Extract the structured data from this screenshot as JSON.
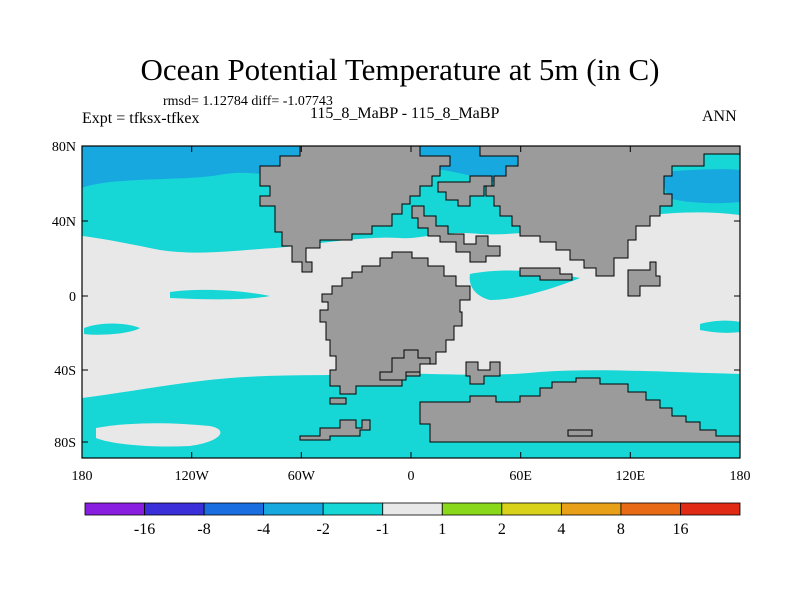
{
  "title": "Ocean Potential Temperature at 5m (in C)",
  "stats": "rmsd= 1.12784 diff= -1.07743",
  "experiment": "Expt = tfksx-tfkex",
  "case_label": "115_8_MaBP - 115_8_MaBP",
  "season": "ANN",
  "x_ticks": [
    "180",
    "120W",
    "60W",
    "0",
    "60E",
    "120E",
    "180"
  ],
  "y_ticks": [
    "80N",
    "40N",
    "0",
    "40S",
    "80S"
  ],
  "colorbar": {
    "labels": [
      "-16",
      "-8",
      "-4",
      "-2",
      "-1",
      "1",
      "2",
      "4",
      "8",
      "16"
    ],
    "colors": [
      "#8a1ee0",
      "#3a2fd8",
      "#1a6ee0",
      "#18a8e0",
      "#17d6d6",
      "#e8e8e8",
      "#8ad81a",
      "#d8d21a",
      "#e8a018",
      "#e86a14",
      "#e02a14"
    ]
  },
  "colors": {
    "land": "#9b9b9b",
    "ocean_neutral": "#e8e8e8",
    "cyan": "#17d6d6",
    "blue": "#18a8e0"
  }
}
